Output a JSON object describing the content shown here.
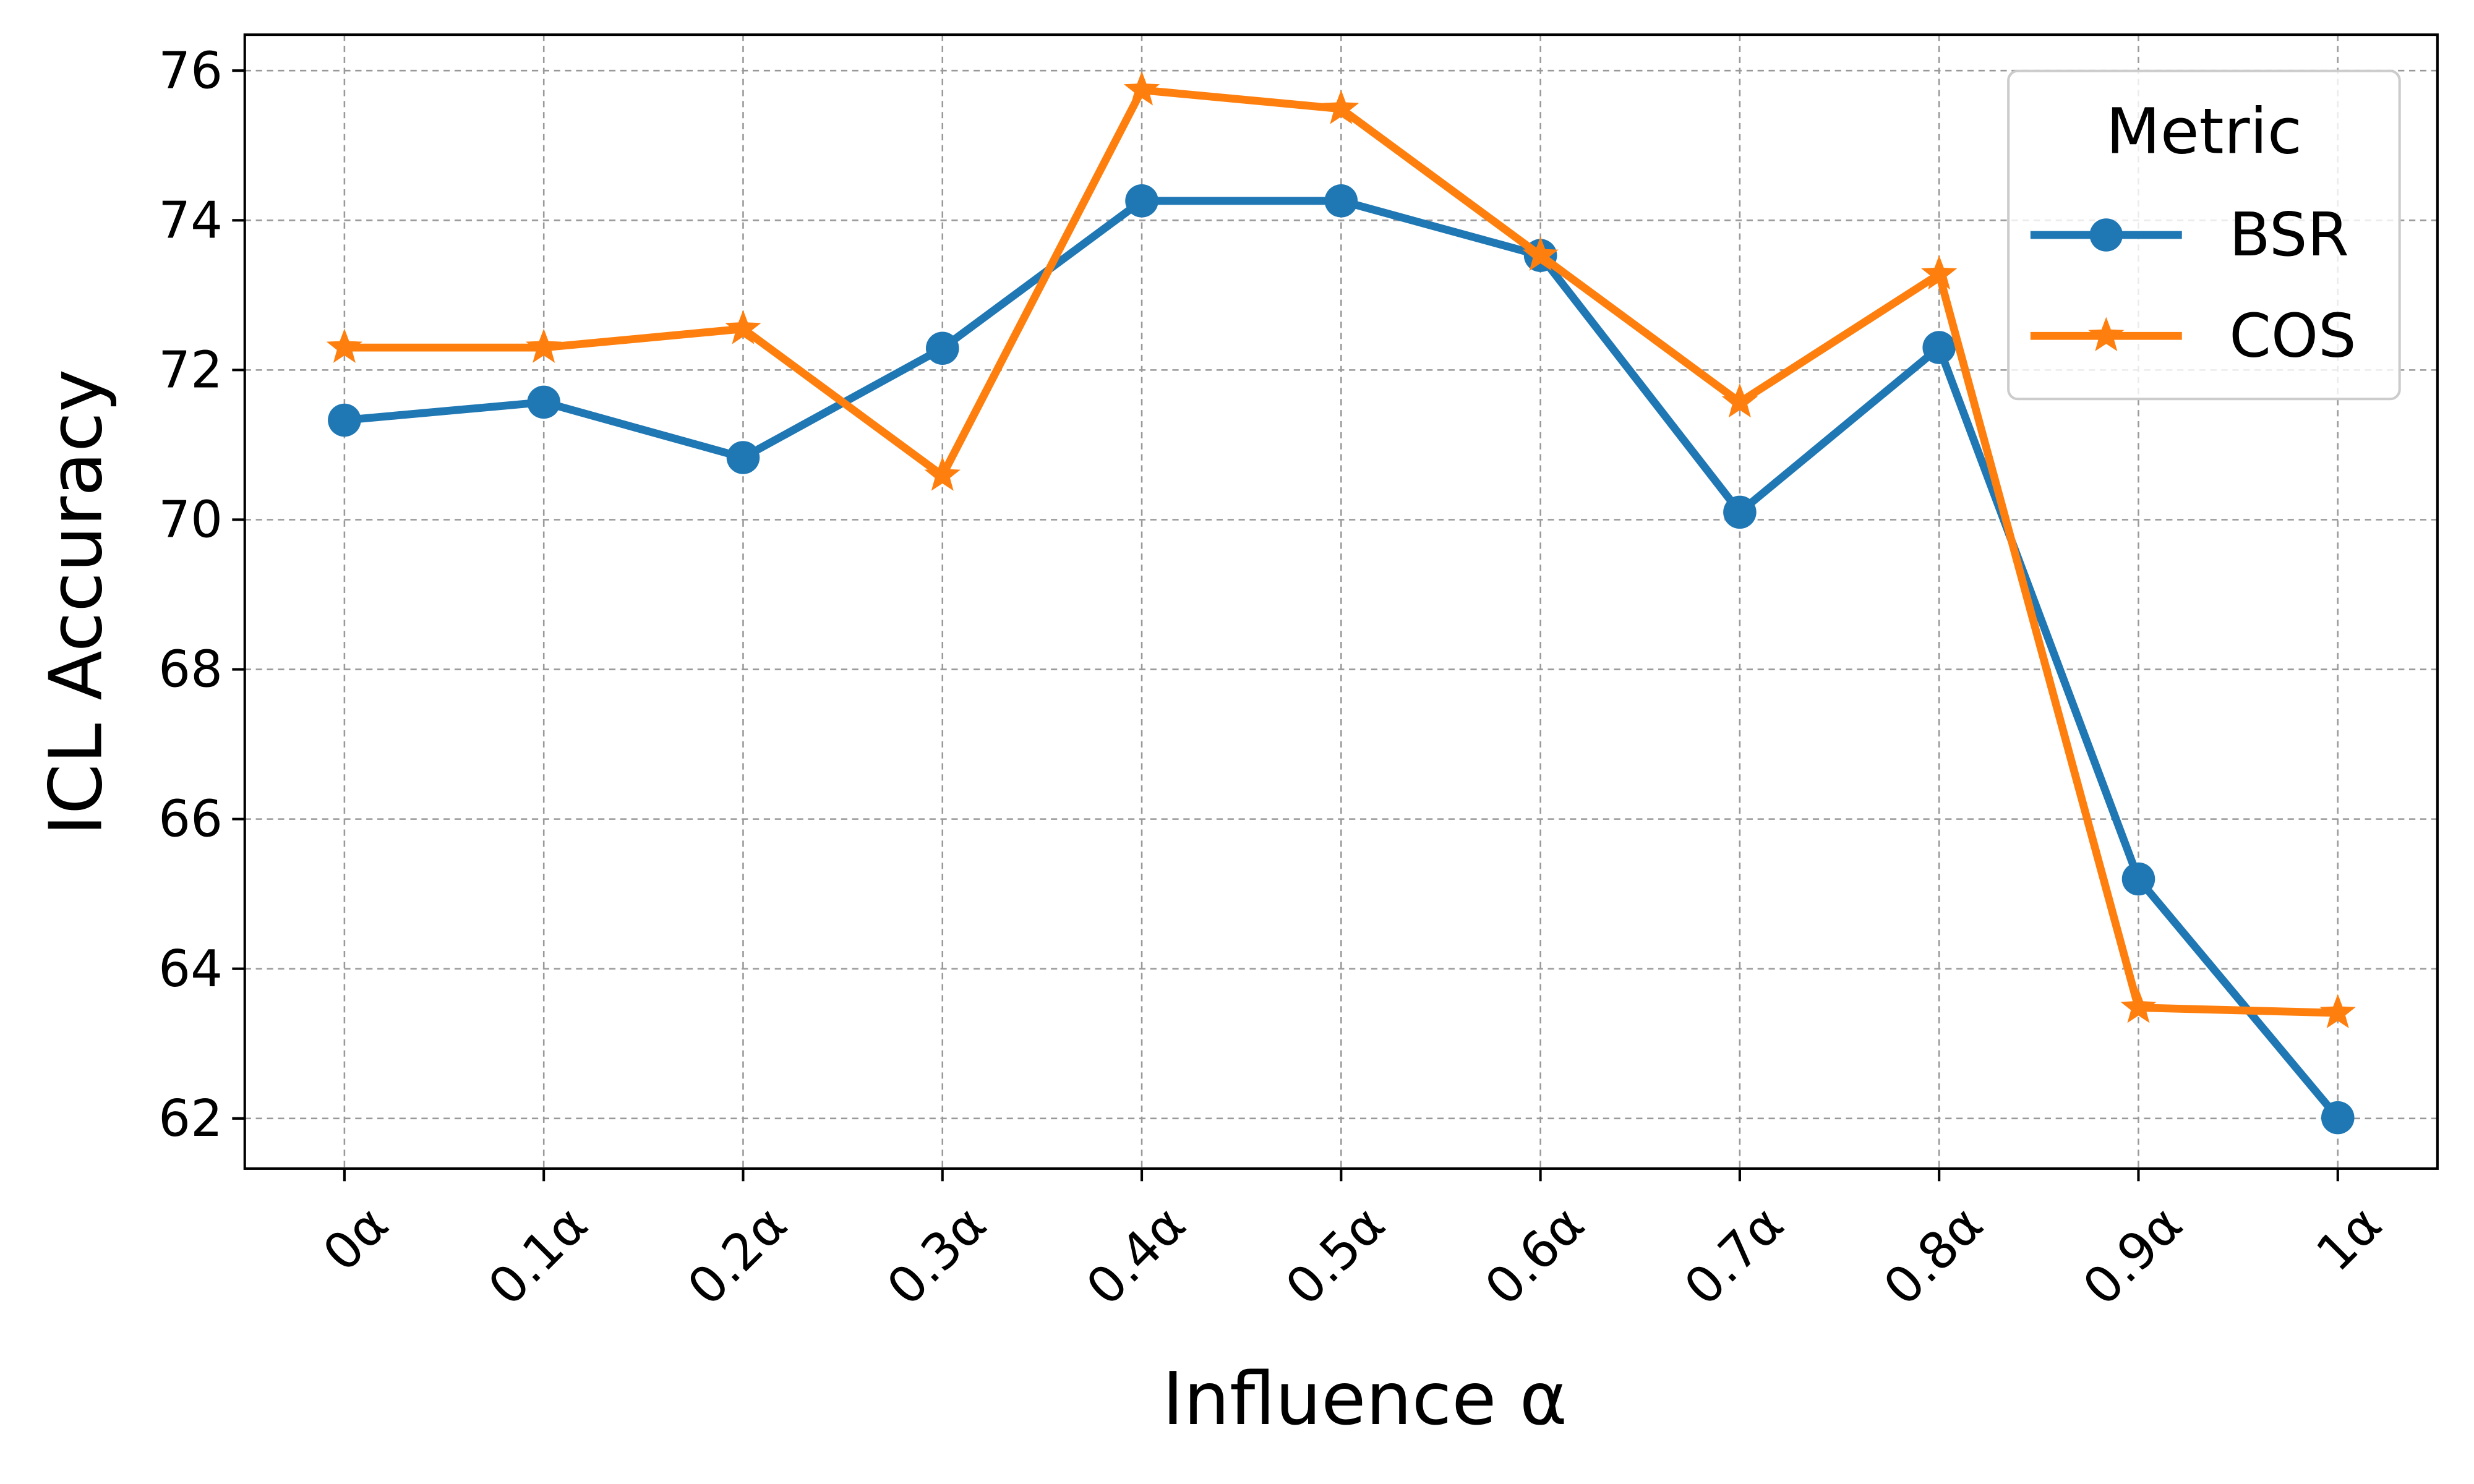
{
  "chart_data": {
    "type": "line",
    "x_label": "Influence α",
    "y_label": "ICL Accuracy",
    "categories": [
      "0α",
      "0.1α",
      "0.2α",
      "0.3α",
      "0.4α",
      "0.5α",
      "0.6α",
      "0.7α",
      "0.8α",
      "0.9α",
      "1α"
    ],
    "series": [
      {
        "name": "BSR",
        "color": "#1f77b4",
        "marker": "circle",
        "values": [
          71.33,
          71.57,
          70.83,
          72.29,
          74.26,
          74.26,
          73.53,
          70.1,
          72.3,
          65.2,
          62.01
        ]
      },
      {
        "name": "COS",
        "color": "#ff7f0e",
        "marker": "star",
        "values": [
          72.3,
          72.3,
          72.55,
          70.59,
          75.74,
          75.49,
          73.53,
          71.57,
          73.28,
          63.48,
          63.41
        ]
      }
    ],
    "ylim": [
      61.33,
      76.48
    ],
    "yticks": [
      62,
      64,
      66,
      68,
      70,
      72,
      74,
      76
    ],
    "grid": true,
    "legend_title": "Metric",
    "legend_position": "upper-right"
  }
}
